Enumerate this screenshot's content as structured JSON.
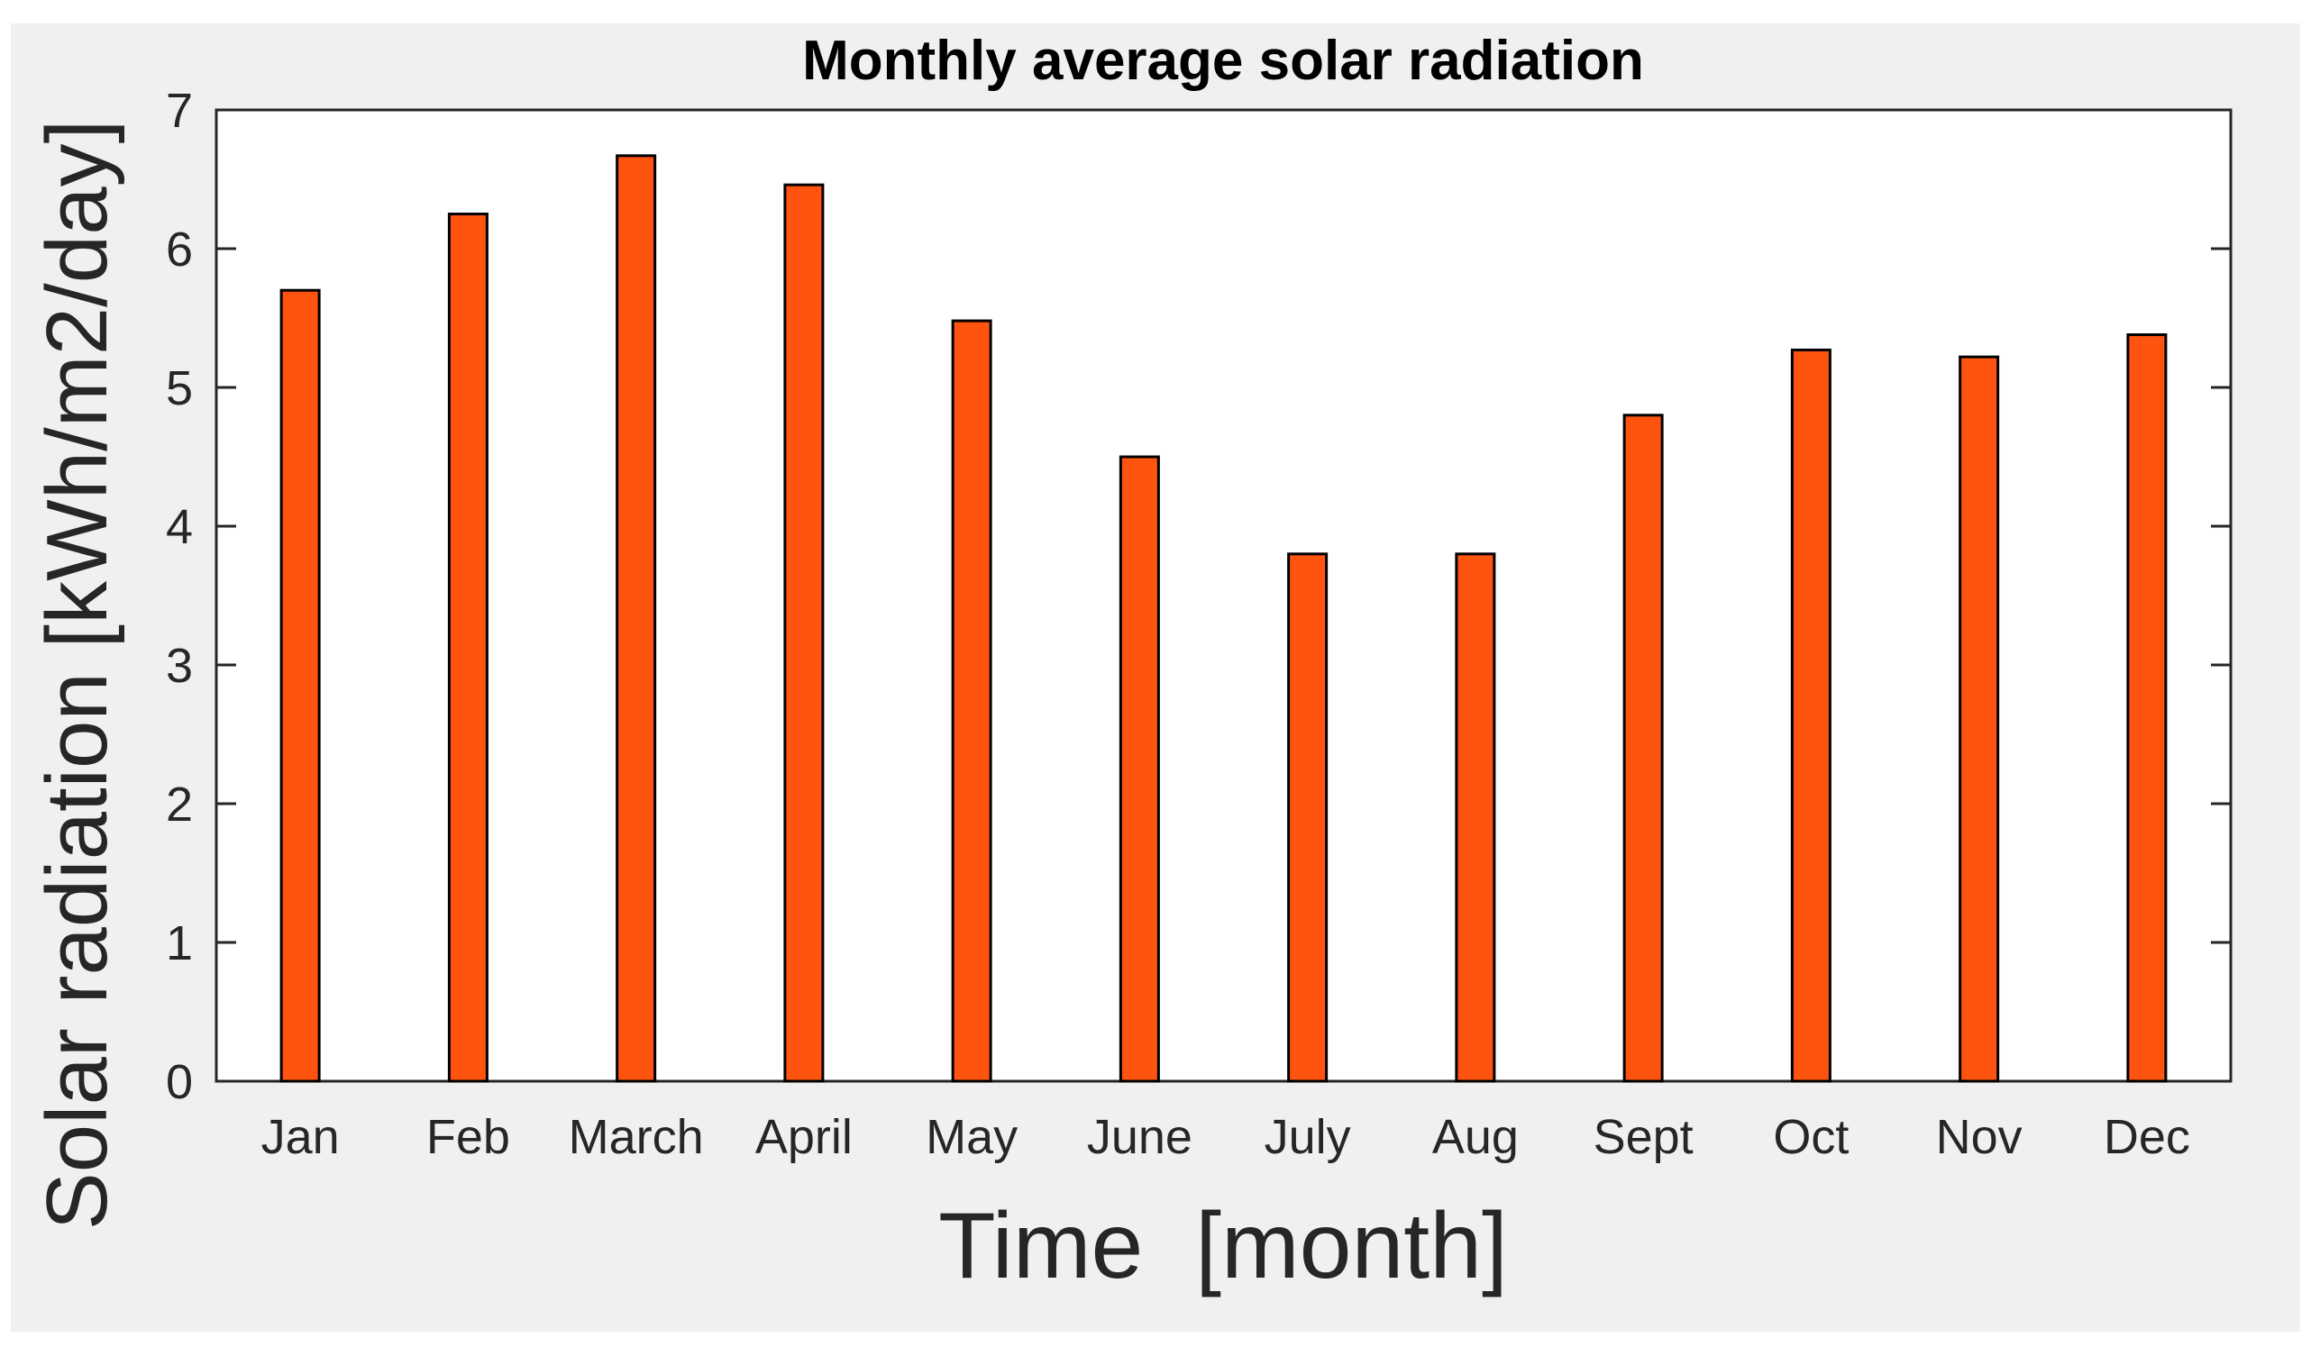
{
  "chart_data": {
    "type": "bar",
    "title": "Monthly average solar radiation",
    "xlabel": "Time  [month]",
    "ylabel": "Solar radiation [kWh/m2/day]",
    "categories": [
      "Jan",
      "Feb",
      "March",
      "April",
      "May",
      "June",
      "July",
      "Aug",
      "Sept",
      "Oct",
      "Nov",
      "Dec"
    ],
    "values": [
      5.7,
      6.25,
      6.67,
      6.46,
      5.48,
      4.5,
      3.8,
      3.8,
      4.8,
      5.27,
      5.22,
      5.38
    ],
    "yticks": [
      "0",
      "1",
      "2",
      "3",
      "4",
      "5",
      "6",
      "7"
    ],
    "ylim": [
      0,
      7
    ],
    "grid": false,
    "bar_color": "#ff5310",
    "edge_color": "#000000"
  }
}
